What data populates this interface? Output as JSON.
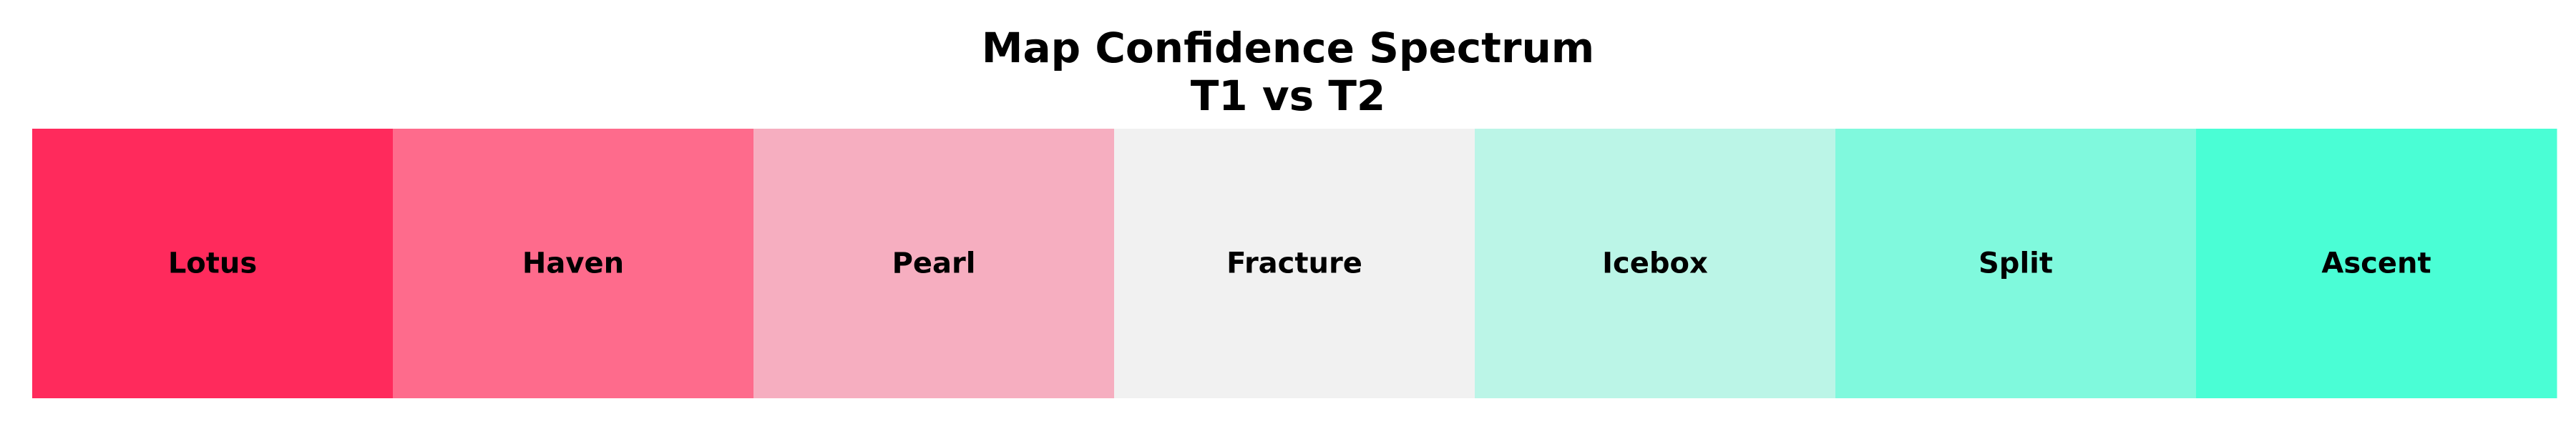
{
  "chart_data": {
    "type": "heatmap",
    "title": "Map Confidence Spectrum",
    "subtitle": "T1 vs T2",
    "categories": [
      "Lotus",
      "Haven",
      "Pearl",
      "Fracture",
      "Icebox",
      "Split",
      "Ascent"
    ],
    "colors": [
      "#ff2a5c",
      "#fe6b8c",
      "#f6aec0",
      "#f1f1f1",
      "#bbf5e7",
      "#80f9dd",
      "#4afed5"
    ],
    "grid": false,
    "legend": "none"
  }
}
